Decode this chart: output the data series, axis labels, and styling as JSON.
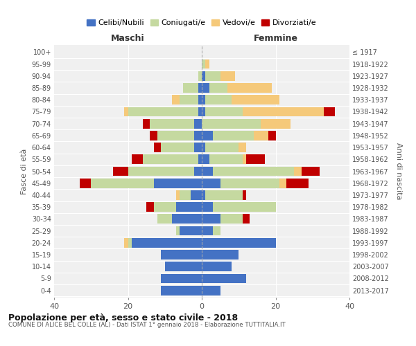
{
  "age_groups": [
    "0-4",
    "5-9",
    "10-14",
    "15-19",
    "20-24",
    "25-29",
    "30-34",
    "35-39",
    "40-44",
    "45-49",
    "50-54",
    "55-59",
    "60-64",
    "65-69",
    "70-74",
    "75-79",
    "80-84",
    "85-89",
    "90-94",
    "95-99",
    "100+"
  ],
  "birth_years": [
    "2013-2017",
    "2008-2012",
    "2003-2007",
    "1998-2002",
    "1993-1997",
    "1988-1992",
    "1983-1987",
    "1978-1982",
    "1973-1977",
    "1968-1972",
    "1963-1967",
    "1958-1962",
    "1953-1957",
    "1948-1952",
    "1943-1947",
    "1938-1942",
    "1933-1937",
    "1928-1932",
    "1923-1927",
    "1918-1922",
    "≤ 1917"
  ],
  "males": {
    "celibi": [
      11,
      11,
      10,
      11,
      19,
      6,
      8,
      7,
      3,
      13,
      2,
      1,
      2,
      2,
      2,
      1,
      1,
      1,
      0,
      0,
      0
    ],
    "coniugati": [
      0,
      0,
      0,
      0,
      1,
      1,
      4,
      6,
      3,
      17,
      18,
      15,
      9,
      10,
      12,
      19,
      5,
      4,
      1,
      0,
      0
    ],
    "vedovi": [
      0,
      0,
      0,
      0,
      1,
      0,
      0,
      0,
      1,
      0,
      0,
      0,
      0,
      0,
      0,
      1,
      2,
      0,
      0,
      0,
      0
    ],
    "divorziati": [
      0,
      0,
      0,
      0,
      0,
      0,
      0,
      2,
      0,
      3,
      4,
      3,
      2,
      2,
      2,
      0,
      0,
      0,
      0,
      0,
      0
    ]
  },
  "females": {
    "nubili": [
      5,
      12,
      8,
      10,
      20,
      3,
      5,
      3,
      1,
      5,
      3,
      2,
      1,
      3,
      0,
      1,
      1,
      2,
      1,
      0,
      0
    ],
    "coniugate": [
      0,
      0,
      0,
      0,
      0,
      2,
      6,
      17,
      10,
      16,
      22,
      9,
      9,
      11,
      16,
      10,
      7,
      5,
      4,
      1,
      0
    ],
    "vedove": [
      0,
      0,
      0,
      0,
      0,
      0,
      0,
      0,
      0,
      2,
      2,
      1,
      2,
      4,
      8,
      22,
      13,
      12,
      4,
      1,
      0
    ],
    "divorziate": [
      0,
      0,
      0,
      0,
      0,
      0,
      2,
      0,
      1,
      6,
      5,
      5,
      0,
      2,
      0,
      3,
      0,
      0,
      0,
      0,
      0
    ]
  },
  "colors": {
    "celibi_nubili": "#4472c4",
    "coniugati": "#c5d9a0",
    "vedovi": "#f5c97a",
    "divorziati": "#c00000"
  },
  "xlim": 40,
  "title": "Popolazione per età, sesso e stato civile - 2018",
  "subtitle": "COMUNE DI ALICE BEL COLLE (AL) - Dati ISTAT 1° gennaio 2018 - Elaborazione TUTTITALIA.IT",
  "xlabel_left": "Maschi",
  "xlabel_right": "Femmine",
  "ylabel_left": "Fasce di età",
  "ylabel_right": "Anni di nascita",
  "legend_labels": [
    "Celibi/Nubili",
    "Coniugati/e",
    "Vedovi/e",
    "Divorziati/e"
  ],
  "bg_color": "#ffffff",
  "plot_bg_color": "#f0f0f0",
  "grid_color": "#ffffff"
}
